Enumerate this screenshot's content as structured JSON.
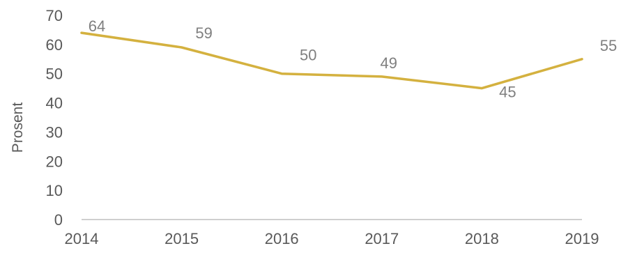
{
  "chart_data": {
    "type": "line",
    "title": "",
    "xlabel": "",
    "ylabel": "Prosent",
    "categories": [
      "2014",
      "2015",
      "2016",
      "2017",
      "2018",
      "2019"
    ],
    "series": [
      {
        "values": [
          64,
          59,
          50,
          49,
          45,
          55
        ],
        "color": "#D4B13F"
      }
    ],
    "data_labels": [
      "64",
      "59",
      "50",
      "49",
      "45",
      "55"
    ],
    "ylim": [
      0,
      70
    ],
    "yticks": [
      "0",
      "10",
      "20",
      "30",
      "40",
      "50",
      "60",
      "70"
    ],
    "grid": false,
    "legend": "none",
    "colors": {
      "line": "#D4B13F",
      "axis": "#BFBFBF",
      "text": "#595959",
      "label": "#7F7F7F"
    }
  }
}
